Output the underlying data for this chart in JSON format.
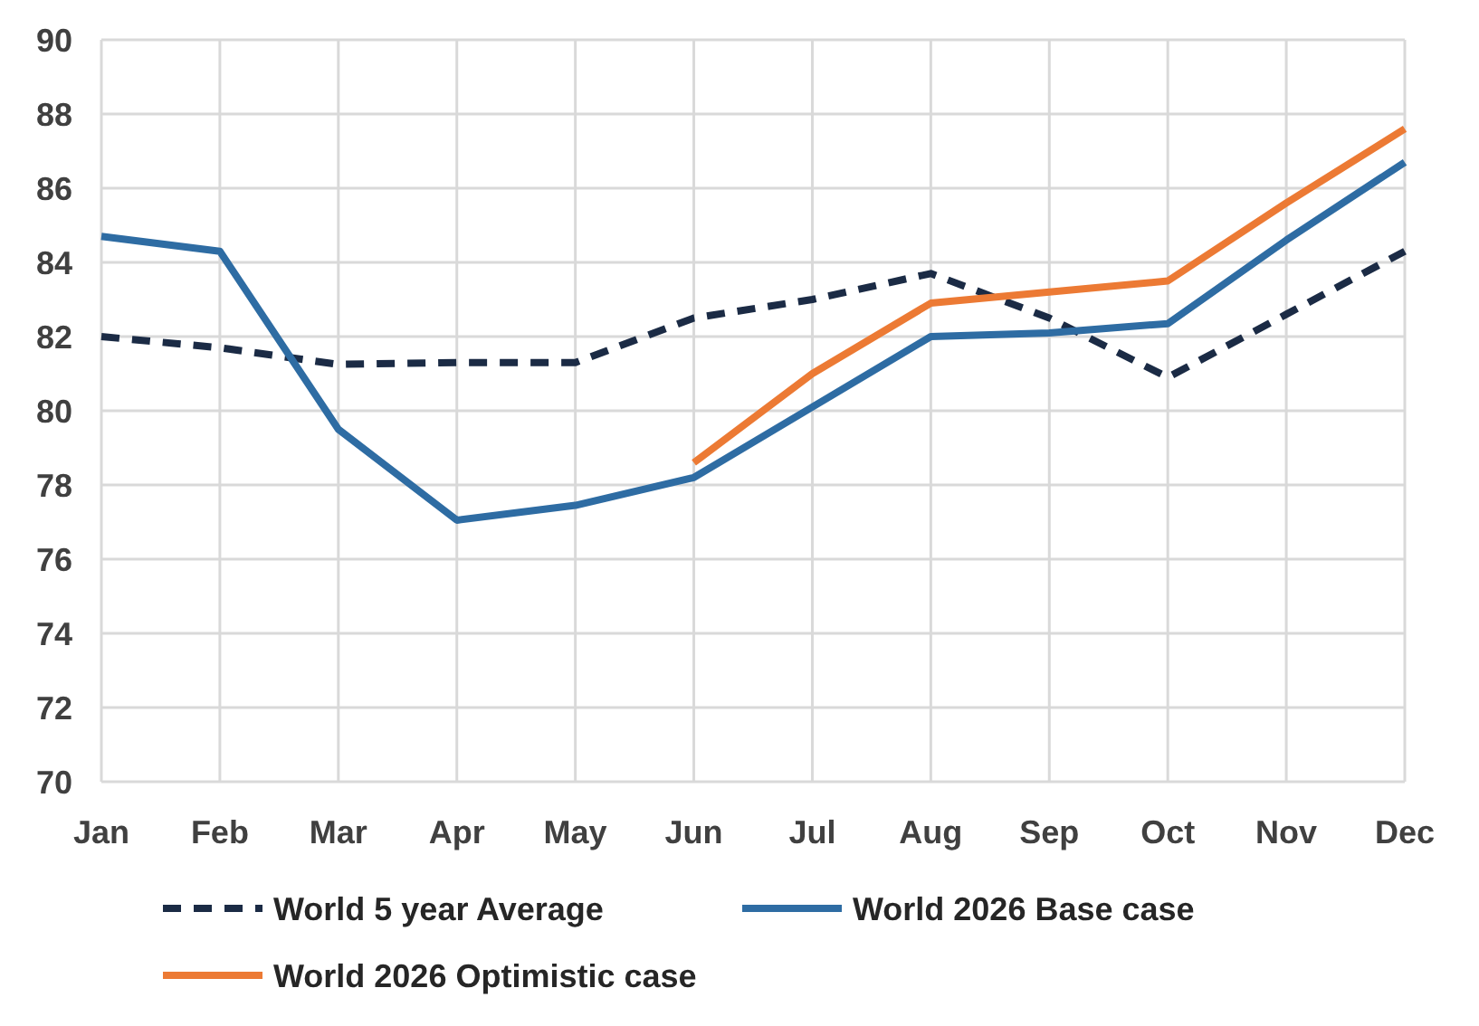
{
  "chart_data": {
    "type": "line",
    "categories": [
      "Jan",
      "Feb",
      "Mar",
      "Apr",
      "May",
      "Jun",
      "Jul",
      "Aug",
      "Sep",
      "Oct",
      "Nov",
      "Dec"
    ],
    "series": [
      {
        "name": "World 5 year Average",
        "color": "#1b2b45",
        "line_style": "dashed",
        "values": [
          82.0,
          81.7,
          81.25,
          81.3,
          81.3,
          82.5,
          83.0,
          83.7,
          82.5,
          80.9,
          82.6,
          84.3
        ]
      },
      {
        "name": "World 2026 Base case",
        "color": "#2e6ca3",
        "line_style": "solid",
        "values": [
          84.7,
          84.3,
          79.5,
          77.05,
          77.45,
          78.2,
          80.1,
          82.0,
          82.1,
          82.35,
          84.6,
          86.7
        ]
      },
      {
        "name": "World 2026 Optimistic case",
        "color": "#ec7a34",
        "line_style": "solid",
        "values": [
          null,
          null,
          null,
          null,
          null,
          78.6,
          81.0,
          82.9,
          83.2,
          83.5,
          85.6,
          87.6
        ]
      }
    ],
    "ylim": [
      70,
      90
    ],
    "yticks": [
      70,
      72,
      74,
      76,
      78,
      80,
      82,
      84,
      86,
      88,
      90
    ],
    "grid": true,
    "legend": "bottom",
    "marker": "none"
  }
}
